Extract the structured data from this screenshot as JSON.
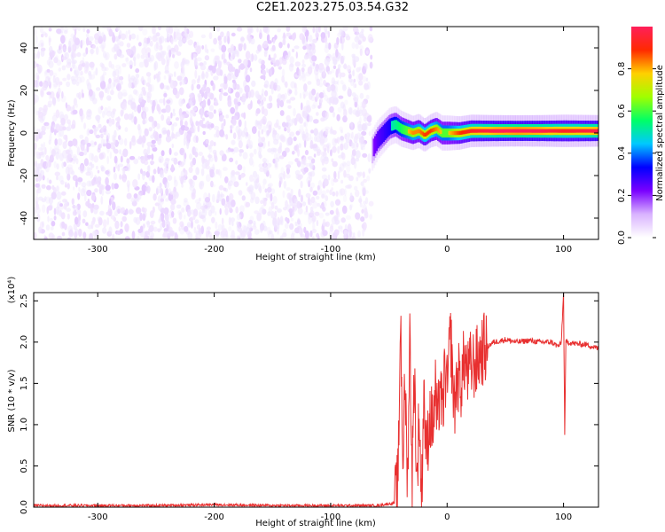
{
  "title": "C2E1.2023.275.03.54.G32",
  "chart_data": [
    {
      "type": "heatmap",
      "xlabel": "Height of straight line (km)",
      "ylabel": "Frequency (Hz)",
      "xlim": [
        -355,
        130
      ],
      "ylim": [
        -50,
        50
      ],
      "x_ticks": [
        -300,
        -200,
        -100,
        0,
        100
      ],
      "y_ticks": [
        -40,
        -20,
        0,
        20,
        40
      ],
      "colorbar": {
        "label": "Normalized spectral amplitude",
        "range": [
          0,
          1
        ],
        "ticks": [
          "0.0",
          "0.2",
          "0.4",
          "0.6",
          "0.8"
        ],
        "colormap": [
          "#ffffff",
          "#d9b3ff",
          "#7a00ff",
          "#0000ff",
          "#00c8ff",
          "#00ff66",
          "#a0ff00",
          "#ffd000",
          "#ff2a00",
          "#ff1f5a"
        ]
      },
      "noise_region_x": [
        -355,
        -65
      ],
      "signal_trace": {
        "x": [
          -65,
          -60,
          -55,
          -50,
          -45,
          -40,
          -35,
          -30,
          -25,
          -20,
          -15,
          -10,
          -5,
          0,
          10,
          20,
          40,
          60,
          80,
          100,
          130
        ],
        "y": [
          -8,
          -3,
          0,
          3,
          4,
          2,
          1,
          0,
          1,
          -1,
          1,
          2,
          0,
          0,
          0,
          1,
          1,
          1,
          1,
          1,
          1
        ],
        "amplitude": [
          0.35,
          0.45,
          0.5,
          0.55,
          0.6,
          0.65,
          0.7,
          0.75,
          0.75,
          0.8,
          0.8,
          0.75,
          0.7,
          0.7,
          0.8,
          0.85,
          0.9,
          0.92,
          0.9,
          0.85,
          0.9
        ]
      }
    },
    {
      "type": "line",
      "xlabel": "Height of straight line (km)",
      "ylabel": "SNR (10 * v/v)",
      "yscale_label": "(x10⁴)",
      "xlim": [
        -355,
        130
      ],
      "ylim": [
        0,
        2.6
      ],
      "x_ticks": [
        -300,
        -200,
        -100,
        0,
        100
      ],
      "y_ticks": [
        "0.0",
        "0.5",
        "1.0",
        "1.5",
        "2.0",
        "2.5"
      ],
      "color": "#e83030",
      "series": [
        {
          "x": [
            -355,
            -300,
            -250,
            -200,
            -150,
            -100,
            -60,
            -45,
            -42,
            -40,
            -38,
            -36,
            -34,
            -32,
            -30,
            -28,
            -26,
            -24,
            -22,
            -20,
            -18,
            -15,
            -12,
            -10,
            -8,
            -6,
            -4,
            -2,
            0,
            3,
            6,
            9,
            12,
            15,
            18,
            20,
            25,
            30,
            35,
            40,
            50,
            60,
            70,
            80,
            90,
            95,
            98,
            100,
            101,
            102,
            104,
            110,
            120,
            130
          ],
          "y": [
            0.02,
            0.02,
            0.02,
            0.03,
            0.02,
            0.02,
            0.02,
            0.05,
            0.3,
            2.35,
            0.6,
            1.5,
            0.3,
            2.1,
            0.4,
            1.7,
            0.2,
            1.2,
            0.0,
            1.5,
            0.6,
            1.1,
            1.0,
            1.4,
            0.9,
            1.6,
            1.0,
            1.7,
            1.4,
            2.1,
            1.2,
            1.6,
            1.5,
            1.8,
            1.6,
            1.7,
            1.75,
            1.9,
            1.95,
            2.0,
            2.03,
            2.0,
            2.02,
            2.0,
            2.0,
            1.95,
            1.98,
            2.6,
            0.85,
            2.0,
            2.0,
            1.98,
            1.97,
            1.92
          ]
        }
      ]
    }
  ]
}
